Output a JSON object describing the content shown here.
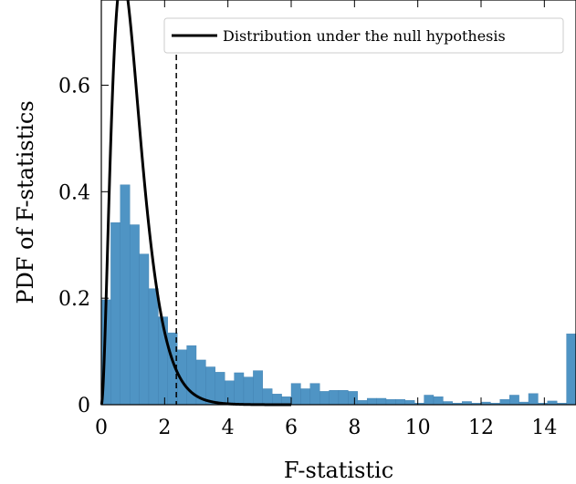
{
  "chart_data": {
    "type": "bar",
    "xlabel": "F-statistic",
    "ylabel": "PDF of F-statistics",
    "xlim": [
      0,
      15
    ],
    "ylim": [
      0,
      0.76
    ],
    "xticks": [
      0,
      2,
      4,
      6,
      8,
      10,
      12,
      14
    ],
    "xtick_labels": [
      "0",
      "2",
      "4",
      "6",
      "8",
      "10",
      "12",
      "14"
    ],
    "yticks": [
      0,
      0.2,
      0.4,
      0.6
    ],
    "ytick_labels": [
      "0",
      "0.2",
      "0.4",
      "0.6"
    ],
    "grid": false,
    "legend_position": "top-right",
    "histogram": {
      "bin_width": 0.3,
      "color": "#4f94c4",
      "values": [
        0.197,
        0.342,
        0.413,
        0.338,
        0.283,
        0.218,
        0.165,
        0.135,
        0.103,
        0.111,
        0.084,
        0.071,
        0.061,
        0.045,
        0.06,
        0.052,
        0.064,
        0.03,
        0.02,
        0.015,
        0.04,
        0.03,
        0.04,
        0.025,
        0.027,
        0.027,
        0.025,
        0.008,
        0.012,
        0.012,
        0.01,
        0.01,
        0.008,
        0.003,
        0.018,
        0.015,
        0.006,
        0.003,
        0.006,
        0.003,
        0.005,
        0.003,
        0.01,
        0.018,
        0.005,
        0.021,
        0.003,
        0.007,
        0.003,
        0.133
      ]
    },
    "threshold_x": 2.37,
    "null_distribution": {
      "name": "Distribution under the null hypothesis",
      "df1": 6,
      "df2": 300,
      "color": "#000000"
    }
  }
}
